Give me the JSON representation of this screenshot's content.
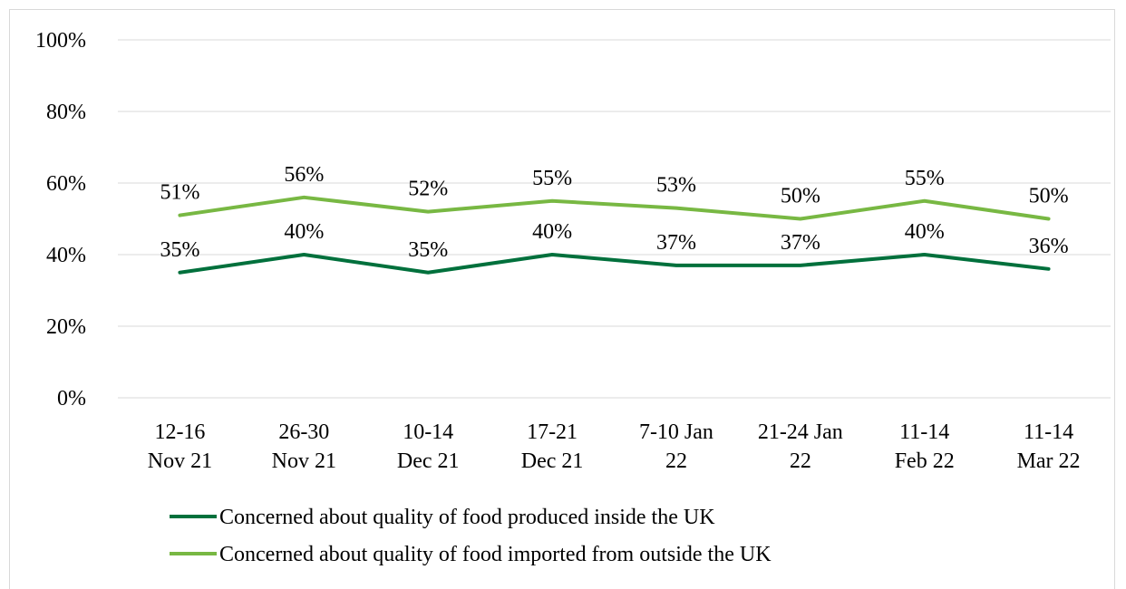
{
  "chart_data": {
    "type": "line",
    "title": "",
    "xlabel": "",
    "ylabel": "",
    "ylim": [
      0,
      100
    ],
    "y_ticks": [
      "0%",
      "20%",
      "40%",
      "60%",
      "80%",
      "100%"
    ],
    "grid": true,
    "legend_position": "bottom",
    "categories": [
      [
        "12-16",
        "Nov 21"
      ],
      [
        "26-30",
        "Nov 21"
      ],
      [
        "10-14",
        "Dec 21"
      ],
      [
        "17-21",
        "Dec 21"
      ],
      [
        "7-10 Jan",
        "22"
      ],
      [
        "21-24 Jan",
        "22"
      ],
      [
        "11-14",
        "Feb 22"
      ],
      [
        "11-14",
        "Mar 22"
      ]
    ],
    "series": [
      {
        "name": "Concerned about quality of food produced inside the UK",
        "color": "#00703c",
        "values": [
          35,
          40,
          35,
          40,
          37,
          37,
          40,
          36
        ],
        "labels": [
          "35%",
          "40%",
          "35%",
          "40%",
          "37%",
          "37%",
          "40%",
          "36%"
        ]
      },
      {
        "name": "Concerned about quality of food imported from outside the UK",
        "color": "#78b843",
        "values": [
          51,
          56,
          52,
          55,
          53,
          50,
          55,
          50
        ],
        "labels": [
          "51%",
          "56%",
          "52%",
          "55%",
          "53%",
          "50%",
          "55%",
          "50%"
        ]
      }
    ]
  }
}
